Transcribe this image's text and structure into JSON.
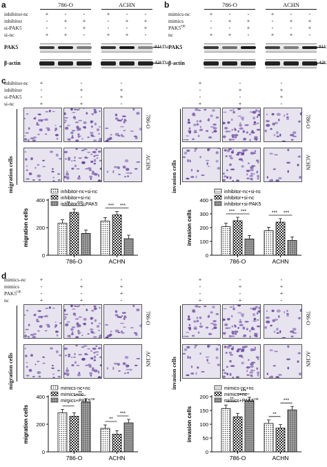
{
  "panels": {
    "a": {
      "letter": "a",
      "cell_lines": [
        "786-O",
        "ACHN"
      ],
      "conditions": [
        "inhibitor-nc",
        "inhibitor",
        "si-PAK5",
        "si-nc"
      ],
      "signs": [
        [
          "+",
          "-",
          "-",
          "+",
          "-",
          "-"
        ],
        [
          "-",
          "+",
          "+",
          "-",
          "+",
          "+"
        ],
        [
          "-",
          "-",
          "+",
          "-",
          "-",
          "+"
        ],
        [
          "+",
          "+",
          "-",
          "+",
          "+",
          "-"
        ]
      ],
      "rows": [
        "PAK5",
        "β-actin"
      ],
      "markers": [
        "81kDa",
        "42kDa"
      ],
      "pak5": [
        0.8,
        0.95,
        0.35,
        0.85,
        1.0,
        0.3
      ]
    },
    "b": {
      "letter": "b",
      "cell_lines": [
        "786-O",
        "ACHN"
      ],
      "conditions": [
        "mimics-nc",
        "mimics",
        "PAK5",
        "nc"
      ],
      "sup": "OE",
      "signs": [
        [
          "+",
          "-",
          "-",
          "+",
          "-",
          "-"
        ],
        [
          "-",
          "+",
          "+",
          "-",
          "+",
          "+"
        ],
        [
          "-",
          "-",
          "+",
          "-",
          "-",
          "+"
        ],
        [
          "+",
          "+",
          "-",
          "+",
          "+",
          "-"
        ]
      ],
      "rows": [
        "PAK5",
        "β-actin"
      ],
      "markers": [
        "81kDa",
        "42kDa"
      ],
      "pak5": [
        0.8,
        0.45,
        1.0,
        0.75,
        0.35,
        0.95
      ]
    },
    "c": {
      "letter": "c",
      "conditions": [
        "inhibitor-nc",
        "inhibitor",
        "si-PAK5",
        "si-nc"
      ],
      "signs": [
        [
          "+",
          "-",
          "-"
        ],
        [
          "-",
          "+",
          "+"
        ],
        [
          "-",
          "-",
          "+"
        ],
        [
          "+",
          "+",
          "-"
        ]
      ],
      "left_label": "migration cells",
      "right_label": "invasion cells",
      "cell_lines": [
        "786-O",
        "ACHN"
      ]
    },
    "d": {
      "letter": "d",
      "conditions": [
        "mimics-nc",
        "mimics",
        "PAK5",
        "nc"
      ],
      "sup": "OE",
      "signs": [
        [
          "+",
          "-",
          "-"
        ],
        [
          "-",
          "+",
          "+"
        ],
        [
          "-",
          "-",
          "+"
        ],
        [
          "+",
          "+",
          "-"
        ]
      ],
      "left_label": "migration cells",
      "right_label": "invasion cells",
      "cell_lines": [
        "786-O",
        "ACHN"
      ]
    }
  },
  "chart_data": [
    {
      "type": "bar",
      "ylabel": "migration cells",
      "categories": [
        "786-O",
        "ACHN"
      ],
      "ylim": [
        0,
        400
      ],
      "yticks": [
        0,
        200,
        400
      ],
      "series": [
        {
          "name": "inhibitor-nc+si-nc",
          "values": [
            232,
            248
          ]
        },
        {
          "name": "inhibitor+si-nc",
          "values": [
            310,
            292
          ]
        },
        {
          "name": "inhibitor+si-PAK5",
          "values": [
            158,
            120
          ]
        }
      ],
      "annotations": [
        "**",
        "***",
        "***",
        "***"
      ]
    },
    {
      "type": "bar",
      "ylabel": "invasion cells",
      "categories": [
        "786-O",
        "ACHN"
      ],
      "ylim": [
        0,
        400
      ],
      "yticks": [
        0,
        100,
        200,
        300,
        400
      ],
      "series": [
        {
          "name": "inhibitor-nc+si-nc",
          "values": [
            207,
            178
          ]
        },
        {
          "name": "inhibitor+si-nc",
          "values": [
            250,
            240
          ]
        },
        {
          "name": "inhibitor+si-PAK5",
          "values": [
            118,
            108
          ]
        }
      ],
      "annotations": [
        "***",
        "***",
        "***",
        "***"
      ]
    },
    {
      "type": "bar",
      "ylabel": "migration cells",
      "categories": [
        "786-O",
        "ACHN"
      ],
      "ylim": [
        0,
        400
      ],
      "yticks": [
        0,
        200,
        400
      ],
      "series": [
        {
          "name": "mimics-nc+nc",
          "values": [
            283,
            170
          ]
        },
        {
          "name": "mimics+nc",
          "values": [
            258,
            128
          ]
        },
        {
          "name": "mimics+PAK5",
          "sup": "OE",
          "values": [
            360,
            210
          ]
        }
      ],
      "annotations": [
        "*",
        "**",
        "**",
        "***"
      ]
    },
    {
      "type": "bar",
      "ylabel": "invasion cells",
      "categories": [
        "786-O",
        "ACHN"
      ],
      "ylim": [
        0,
        200
      ],
      "yticks": [
        0,
        50,
        100,
        150,
        200
      ],
      "series": [
        {
          "name": "mimics-nc+nc",
          "values": [
            157,
            103
          ]
        },
        {
          "name": "mimics+nc",
          "values": [
            127,
            86
          ]
        },
        {
          "name": "mimics+PAK5",
          "sup": "OE",
          "values": [
            185,
            152
          ]
        }
      ],
      "annotations": [
        "**",
        "***",
        "**",
        "***"
      ]
    }
  ]
}
